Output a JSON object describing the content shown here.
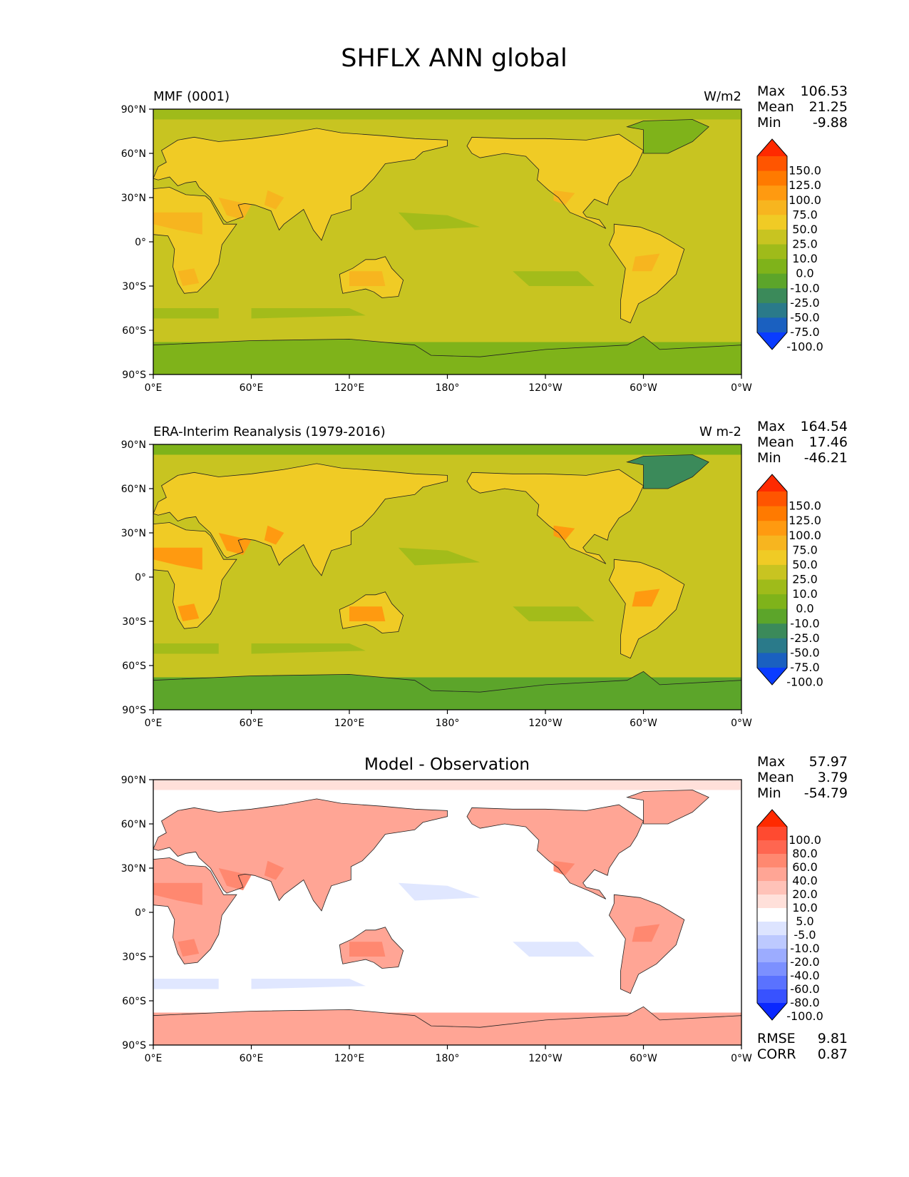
{
  "title": "SHFLX ANN global",
  "lat_ticks": [
    "90°N",
    "60°N",
    "30°N",
    "0°",
    "30°S",
    "60°S",
    "90°S"
  ],
  "lon_ticks": [
    "0°E",
    "60°E",
    "120°E",
    "180°",
    "120°W",
    "60°W",
    "0°W"
  ],
  "stat_labels": {
    "max": "Max",
    "mean": "Mean",
    "min": "Min",
    "rmse": "RMSE",
    "corr": "CORR"
  },
  "panels": [
    {
      "left_title": "MMF (0001)",
      "center_title": "",
      "units": "W/m2",
      "stats": {
        "max": "106.53",
        "mean": "21.25",
        "min": "-9.88"
      },
      "colorbar": {
        "levels": [
          "150.0",
          "125.0",
          "100.0",
          "75.0",
          "50.0",
          "25.0",
          "10.0",
          "0.0",
          "-10.0",
          "-25.0",
          "-50.0",
          "-75.0",
          "-100.0"
        ],
        "colors": [
          "#ff2a00",
          "#ff5500",
          "#ff7a00",
          "#ff9a10",
          "#f7b51f",
          "#f0cb25",
          "#c8c421",
          "#9fbb1a",
          "#7fb31a",
          "#5ca52a",
          "#3b8a5a",
          "#2a7a8a",
          "#1a60c0",
          "#0a3cff"
        ]
      }
    },
    {
      "left_title": "ERA-Interim Reanalysis (1979-2016)",
      "center_title": "",
      "units": "W m-2",
      "stats": {
        "max": "164.54",
        "mean": "17.46",
        "min": "-46.21"
      },
      "colorbar": {
        "levels": [
          "150.0",
          "125.0",
          "100.0",
          "75.0",
          "50.0",
          "25.0",
          "10.0",
          "0.0",
          "-10.0",
          "-25.0",
          "-50.0",
          "-75.0",
          "-100.0"
        ],
        "colors": [
          "#ff2a00",
          "#ff5500",
          "#ff7a00",
          "#ff9a10",
          "#f7b51f",
          "#f0cb25",
          "#c8c421",
          "#9fbb1a",
          "#7fb31a",
          "#5ca52a",
          "#3b8a5a",
          "#2a7a8a",
          "#1a60c0",
          "#0a3cff"
        ]
      }
    },
    {
      "left_title": "",
      "center_title": "Model - Observation",
      "units": "",
      "stats": {
        "max": "57.97",
        "mean": "3.79",
        "min": "-54.79",
        "rmse": "9.81",
        "corr": "0.87"
      },
      "colorbar": {
        "levels": [
          "100.0",
          "80.0",
          "60.0",
          "40.0",
          "20.0",
          "10.0",
          "5.0",
          "-5.0",
          "-10.0",
          "-20.0",
          "-40.0",
          "-60.0",
          "-80.0",
          "-100.0"
        ],
        "colors": [
          "#ff2a00",
          "#ff4a30",
          "#ff6650",
          "#ff8870",
          "#ffa595",
          "#ffc2b8",
          "#ffe0da",
          "#ffffff",
          "#dde4ff",
          "#bdc9ff",
          "#9cacff",
          "#7c90ff",
          "#5a72ff",
          "#3852ff",
          "#0a28ff"
        ]
      }
    }
  ],
  "map_fields": [
    {
      "ocean": "#c8c421",
      "polar_south": "#7fb31a",
      "polar_north": "#9fbb1a",
      "land": "#f0cb25",
      "hot": "#f7b51f",
      "cool": "#9fbb1a",
      "greenland": "#7fb31a"
    },
    {
      "ocean": "#c8c421",
      "polar_south": "#5ca52a",
      "polar_north": "#7fb31a",
      "land": "#f0cb25",
      "hot": "#ff9a10",
      "cool": "#9fbb1a",
      "greenland": "#3b8a5a"
    },
    {
      "ocean": "#ffffff",
      "polar_south": "#ffa595",
      "polar_north": "#ffe0da",
      "land": "#ffa595",
      "hot": "#ff8870",
      "cool": "#dde4ff",
      "greenland": "#ffa595"
    }
  ]
}
